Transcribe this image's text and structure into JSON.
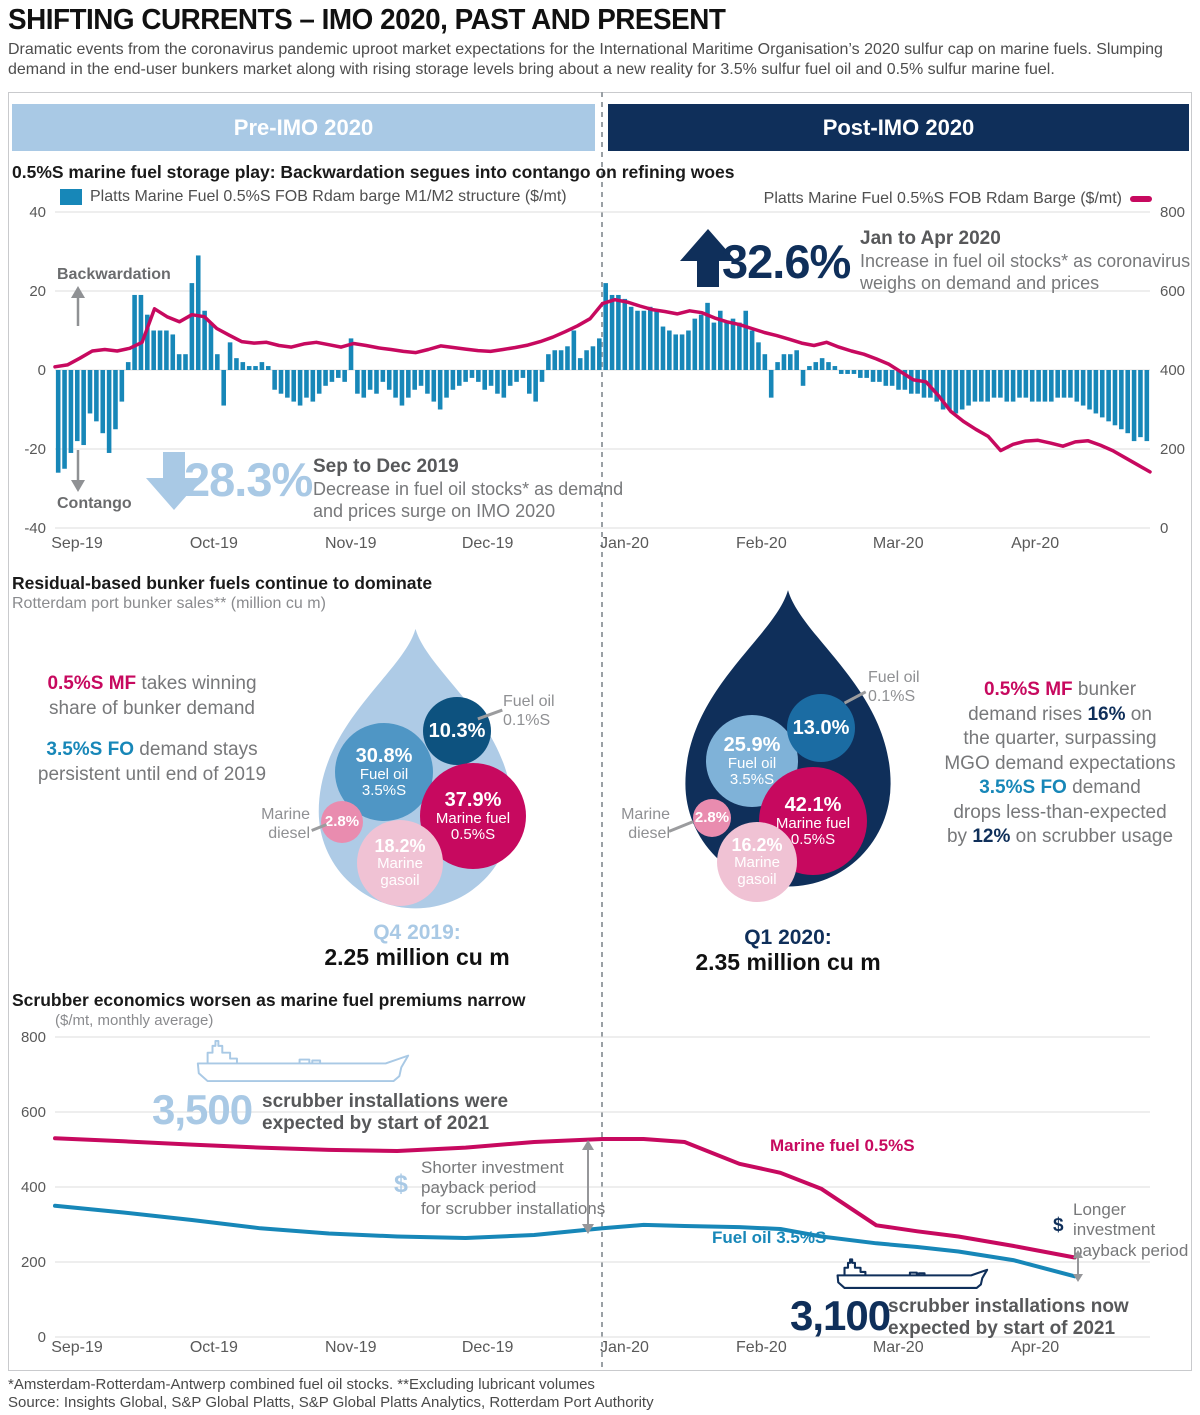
{
  "page": {
    "title": "SHIFTING CURRENTS – IMO 2020, PAST AND PRESENT",
    "subtitle": "Dramatic events from the coronavirus pandemic uproot market expectations for the International Maritime Organisation’s 2020 sulfur cap on marine fuels. Slumping demand in the end-user bunkers market along with rising storage levels bring about a new reality for 3.5% sulfur fuel oil and 0.5% sulfur marine fuel."
  },
  "header": {
    "pre": "Pre-IMO 2020",
    "post": "Post-IMO 2020"
  },
  "chart1": {
    "title": "0.5%S marine fuel storage play: Backwardation segues into contango on refining woes",
    "legend_bar": "Platts Marine Fuel 0.5%S FOB Rdam barge M1/M2 structure ($/mt)",
    "legend_line": "Platts Marine Fuel 0.5%S FOB Rdam Barge ($/mt)",
    "backwardation": "Backwardation",
    "contango": "Contango",
    "callout_down": {
      "pct": "28.3%",
      "period": "Sep to Dec 2019",
      "line1": "Decrease in fuel oil stocks* as demand",
      "line2": "and prices surge on IMO 2020"
    },
    "callout_up": {
      "pct": "32.6%",
      "period": "Jan to Apr 2020",
      "line1": "Increase in fuel oil stocks* as coronavirus",
      "line2": "weighs on demand and prices"
    }
  },
  "section2": {
    "title": "Residual-based bunker fuels continue to dominate",
    "subtitle": "Rotterdam port bunker sales** (million cu m)",
    "left_note1": {
      "lead": "0.5%S MF",
      "rest1": " takes winning",
      "line2": "share of bunker demand"
    },
    "left_note2": {
      "lead": "3.5%S FO",
      "rest1": " demand stays",
      "line2": "persistent until end of 2019"
    },
    "right_note1": {
      "lead": "0.5%S MF",
      "rest1": " bunker",
      "l2a": "demand rises ",
      "l2b": "16%",
      "l2c": " on",
      "line3": "the quarter, surpassing",
      "line4": "MGO demand expectations"
    },
    "right_note2": {
      "lead": "3.5%S FO",
      "rest1": " demand",
      "line2": "drops less-than-expected",
      "l3a": "by ",
      "l3b": "12%",
      "l3c": " on scrubber usage"
    },
    "drops": [
      {
        "period": "Q4 2019:",
        "total": "2.25 million cu m",
        "b_fo35": {
          "pct": "30.8%",
          "l1": "Fuel oil",
          "l2": "3.5%S"
        },
        "b_fo01": {
          "pct": "10.3%"
        },
        "b_mf05": {
          "pct": "37.9%",
          "l1": "Marine fuel",
          "l2": "0.5%S"
        },
        "b_md": {
          "pct": "2.8%"
        },
        "b_mg": {
          "pct": "18.2%",
          "l1": "Marine",
          "l2": "gasoil"
        },
        "ext_fo01": {
          "l1": "Fuel oil",
          "l2": "0.1%S"
        },
        "ext_md": {
          "l1": "Marine",
          "l2": "diesel"
        }
      },
      {
        "period": "Q1 2020:",
        "total": "2.35 million cu m",
        "b_fo35": {
          "pct": "25.9%",
          "l1": "Fuel oil",
          "l2": "3.5%S"
        },
        "b_fo01": {
          "pct": "13.0%"
        },
        "b_mf05": {
          "pct": "42.1%",
          "l1": "Marine fuel",
          "l2": "0.5%S"
        },
        "b_md": {
          "pct": "2.8%"
        },
        "b_mg": {
          "pct": "16.2%",
          "l1": "Marine",
          "l2": "gasoil"
        },
        "ext_fo01": {
          "l1": "Fuel oil",
          "l2": "0.1%S"
        },
        "ext_md": {
          "l1": "Marine",
          "l2": "diesel"
        }
      }
    ]
  },
  "chart3": {
    "title": "Scrubber economics worsen as marine fuel premiums narrow",
    "subtitle": "($/mt, monthly average)",
    "label_mf": "Marine fuel 0.5%S",
    "label_fo": "Fuel oil 3.5%S",
    "dollar": "$",
    "ship1_num": "3,500",
    "ship1_l1": "scrubber installations were",
    "ship1_l2": "expected by start of 2021",
    "ship2_num": "3,100",
    "ship2_l1": "scrubber installations now",
    "ship2_l2": "expected by start of 2021",
    "shorter": {
      "l1": "Shorter investment",
      "l2": "payback period",
      "l3": "for scrubber installations"
    },
    "longer": {
      "l1": "Longer",
      "l2": "investment",
      "l3": "payback period"
    }
  },
  "footnotes": {
    "line1": "*Amsterdam-Rotterdam-Antwerp combined fuel oil stocks. **Excluding lubricant volumes",
    "line2": "Source: Insights Global, S&P Global Platts, S&P Global Platts Analytics, Rotterdam Port Authority"
  },
  "colors": {
    "light_blue": "#a9c9e5",
    "navy": "#0f2f5a",
    "bar_blue": "#1787b8",
    "magenta": "#c7095f",
    "mid_blue": "#4f96c5",
    "dark_steel": "#0d527f",
    "steel": "#1b6ca3",
    "pale_blue": "#7fb2d8",
    "light_pink": "#f0c2d4",
    "mid_pink": "#e98caf",
    "grid": "#dcdcdc",
    "tick": "#595959"
  },
  "chart_data": [
    {
      "type": "bar",
      "title": "0.5%S marine fuel storage play: Backwardation segues into contango on refining woes",
      "bar_series": "Platts Marine Fuel 0.5%S FOB Rdam barge M1/M2 structure ($/mt)",
      "line_series": "Platts Marine Fuel 0.5%S FOB Rdam Barge ($/mt)",
      "x_labels": [
        "Sep-19",
        "Oct-19",
        "Nov-19",
        "Dec-19",
        "Jan-20",
        "Feb-20",
        "Mar-20",
        "Apr-20"
      ],
      "y_left": {
        "ticks": [
          40,
          20,
          0,
          -20,
          -40
        ],
        "lim": [
          -40,
          40
        ]
      },
      "y_right": {
        "ticks": [
          800,
          600,
          400,
          200,
          0
        ],
        "lim": [
          0,
          800
        ]
      },
      "bars": [
        -26,
        -25,
        -21,
        -18,
        -19,
        -11,
        -13,
        -16,
        -21,
        -15,
        -8,
        2,
        19,
        19,
        14,
        10,
        10,
        10,
        9,
        4,
        4,
        22,
        29,
        15,
        12,
        4,
        -9,
        7,
        3,
        2,
        1,
        1,
        2,
        1,
        -5,
        -6,
        -7,
        -8,
        -9,
        -7,
        -8,
        -6,
        -4,
        -3,
        -2,
        -3,
        8,
        -6,
        -7,
        -5,
        -6,
        -3,
        -5,
        -7,
        -9,
        -7,
        -5,
        -4,
        -6,
        -8,
        -10,
        -7,
        -5,
        -4,
        -3,
        -2,
        -3,
        -5,
        -4,
        -6,
        -7,
        -4,
        -3,
        -2,
        -6,
        -8,
        -3,
        4,
        5,
        5,
        6,
        10,
        3,
        5,
        6,
        8,
        22,
        19,
        19,
        18,
        16,
        15,
        15,
        16,
        15,
        11,
        10,
        9,
        9,
        10,
        13,
        14,
        17,
        12,
        15,
        12,
        13,
        12,
        15,
        10,
        7,
        4,
        -7,
        2,
        4,
        4,
        5,
        -4,
        1,
        2,
        3,
        2,
        1,
        -1,
        -1,
        -1,
        -2,
        -2,
        -3,
        -3,
        -4,
        -4,
        -5,
        -5,
        -6,
        -6,
        -7,
        -7,
        -8,
        -10,
        -10,
        -11,
        -10,
        -9,
        -8,
        -8,
        -8,
        -7,
        -7,
        -8,
        -8,
        -7,
        -7,
        -8,
        -8,
        -8,
        -8,
        -7,
        -7,
        -7,
        -8,
        -9,
        -10,
        -11,
        -12,
        -13,
        -14,
        -15,
        -16,
        -18,
        -17,
        -18
      ],
      "line": [
        408,
        413,
        430,
        448,
        452,
        448,
        455,
        470,
        555,
        535,
        522,
        540,
        535,
        505,
        488,
        472,
        468,
        470,
        462,
        458,
        466,
        470,
        464,
        458,
        467,
        462,
        456,
        452,
        447,
        444,
        452,
        461,
        457,
        453,
        449,
        447,
        452,
        457,
        463,
        472,
        483,
        497,
        512,
        530,
        568,
        578,
        572,
        562,
        553,
        548,
        542,
        550,
        545,
        532,
        522,
        515,
        505,
        495,
        487,
        478,
        468,
        462,
        470,
        458,
        448,
        440,
        428,
        415,
        395,
        375,
        370,
        335,
        295,
        270,
        250,
        232,
        196,
        212,
        220,
        222,
        215,
        207,
        218,
        221,
        210,
        196,
        178,
        160,
        142
      ]
    },
    {
      "type": "pie",
      "title": "Rotterdam port bunker sales** (million cu m)",
      "groups": [
        {
          "label": "Q4 2019:",
          "total_label": "2.25 million cu m",
          "categories": [
            "Fuel oil 3.5%S",
            "Fuel oil 0.1%S",
            "Marine fuel 0.5%S",
            "Marine diesel",
            "Marine gasoil"
          ],
          "values": [
            30.8,
            10.3,
            37.9,
            2.8,
            18.2
          ]
        },
        {
          "label": "Q1 2020:",
          "total_label": "2.35 million cu m",
          "categories": [
            "Fuel oil 3.5%S",
            "Fuel oil 0.1%S",
            "Marine fuel 0.5%S",
            "Marine diesel",
            "Marine gasoil"
          ],
          "values": [
            25.9,
            13.0,
            42.1,
            2.8,
            16.2
          ]
        }
      ]
    },
    {
      "type": "line",
      "title": "Scrubber economics worsen as marine fuel premiums narrow",
      "ylabel": "($/mt, monthly average)",
      "x_labels": [
        "Sep-19",
        "Oct-19",
        "Nov-19",
        "Dec-19",
        "Jan-20",
        "Feb-20",
        "Mar-20",
        "Apr-20"
      ],
      "y_ticks": [
        800,
        600,
        400,
        200,
        0
      ],
      "ylim": [
        0,
        800
      ],
      "series": [
        {
          "name": "Marine fuel 0.5%S",
          "color_key": "magenta",
          "x": [
            0,
            0.5,
            1,
            1.5,
            2,
            2.5,
            3,
            3.5,
            4,
            4.3,
            4.6,
            5,
            5.3,
            5.6,
            6,
            6.3,
            6.6,
            7,
            7.45
          ],
          "y": [
            530,
            522,
            513,
            505,
            499,
            496,
            505,
            520,
            528,
            528,
            520,
            462,
            438,
            395,
            298,
            282,
            268,
            243,
            212
          ]
        },
        {
          "name": "Fuel oil 3.5%S",
          "color_key": "bar_blue",
          "x": [
            0,
            0.5,
            1,
            1.5,
            2,
            2.5,
            3,
            3.5,
            4,
            4.3,
            4.6,
            5,
            5.3,
            5.6,
            6,
            6.3,
            6.6,
            7,
            7.45
          ],
          "y": [
            350,
            332,
            312,
            290,
            276,
            268,
            264,
            272,
            290,
            299,
            296,
            293,
            288,
            268,
            250,
            240,
            228,
            205,
            162
          ]
        }
      ]
    }
  ]
}
